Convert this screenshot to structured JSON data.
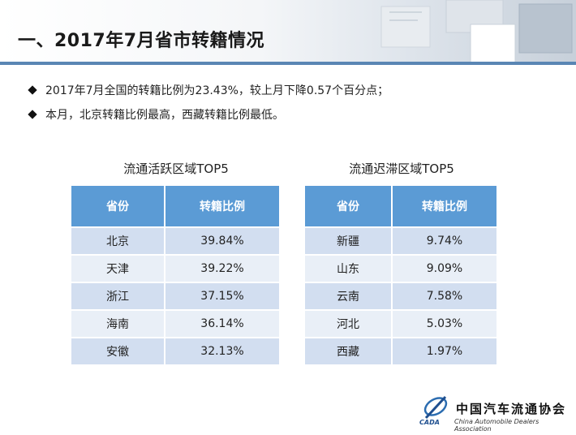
{
  "header": {
    "title": "一、2017年7月省市转籍情况"
  },
  "bullets": [
    "2017年7月全国的转籍比例为23.43%，较上月下降0.57个百分点；",
    "本月，北京转籍比例最高，西藏转籍比例最低。"
  ],
  "active_table": {
    "title": "流通活跃区域TOP5",
    "headers": [
      "省份",
      "转籍比例"
    ],
    "rows": [
      [
        "北京",
        "39.84%"
      ],
      [
        "天津",
        "39.22%"
      ],
      [
        "浙江",
        "37.15%"
      ],
      [
        "海南",
        "36.14%"
      ],
      [
        "安徽",
        "32.13%"
      ]
    ]
  },
  "stagnant_table": {
    "title": "流通迟滞区域TOP5",
    "headers": [
      "省份",
      "转籍比例"
    ],
    "rows": [
      [
        "新疆",
        "9.74%"
      ],
      [
        "山东",
        "9.09%"
      ],
      [
        "云南",
        "7.58%"
      ],
      [
        "河北",
        "5.03%"
      ],
      [
        "西藏",
        "1.97%"
      ]
    ]
  },
  "footer": {
    "logo_text": "CADA",
    "org_name": "中国汽车流通协会",
    "org_name_en": "China Automobile Dealers Association"
  },
  "colors": {
    "table_header": "#5b9bd5",
    "row_odd": "#d2def0",
    "row_even": "#e9eff7",
    "accent_bar": "#5a86b4"
  }
}
